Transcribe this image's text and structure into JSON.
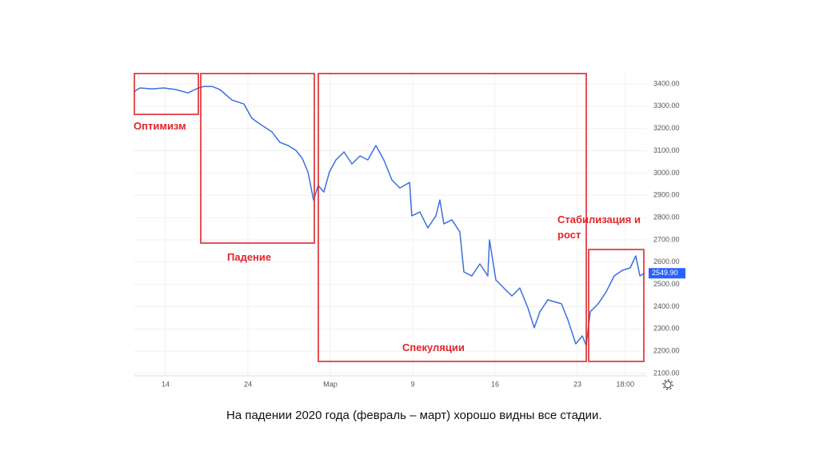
{
  "chart_data": {
    "type": "line",
    "x": [
      -1.94,
      -1.55,
      -0.83,
      -0.1,
      0.63,
      1.36,
      1.99,
      2.33,
      2.82,
      3.3,
      4.03,
      4.76,
      5.24,
      5.73,
      6.46,
      6.94,
      7.43,
      7.91,
      8.3,
      8.64,
      8.98,
      9.27,
      9.61,
      9.95,
      10.34,
      10.83,
      11.31,
      11.8,
      12.28,
      12.77,
      13.25,
      13.74,
      14.22,
      14.81,
      14.95,
      15.44,
      15.92,
      16.41,
      16.65,
      16.89,
      17.38,
      17.86,
      18.11,
      18.59,
      19.08,
      19.56,
      19.66,
      20.05,
      20.53,
      21.02,
      21.5,
      21.99,
      22.38,
      22.72,
      23.2,
      23.69,
      24.03,
      24.42,
      24.9,
      25.29,
      25.53,
      25.78,
      26.26,
      26.75,
      27.23,
      27.72,
      28.2,
      28.54,
      28.79,
      29.08
    ],
    "values": [
      3364,
      3382,
      3378,
      3382,
      3375,
      3360,
      3382,
      3389,
      3389,
      3375,
      3328,
      3310,
      3246,
      3220,
      3185,
      3138,
      3124,
      3102,
      3066,
      3005,
      2879,
      2944,
      2915,
      3005,
      3059,
      3095,
      3041,
      3077,
      3059,
      3124,
      3059,
      2969,
      2933,
      2958,
      2808,
      2825,
      2754,
      2808,
      2879,
      2772,
      2790,
      2736,
      2556,
      2538,
      2592,
      2538,
      2700,
      2520,
      2484,
      2448,
      2484,
      2395,
      2305,
      2377,
      2431,
      2420,
      2413,
      2341,
      2233,
      2269,
      2226,
      2377,
      2413,
      2467,
      2538,
      2563,
      2574,
      2628,
      2538,
      2549.9
    ],
    "color": "#3d6fe0",
    "xlim": [
      -1.94,
      29.2
    ],
    "xticks": [
      {
        "value": 0,
        "label": "14"
      },
      {
        "value": 5,
        "label": "24"
      },
      {
        "value": 10,
        "label": "Мар"
      },
      {
        "value": 15,
        "label": "9"
      },
      {
        "value": 20,
        "label": "16"
      },
      {
        "value": 25,
        "label": "23"
      },
      {
        "value": 27.9,
        "label": "18:00"
      }
    ],
    "ylim": [
      2020,
      3450
    ],
    "yticks": [
      {
        "value": 2100,
        "label": "2100.00"
      },
      {
        "value": 2200,
        "label": "2200.00"
      },
      {
        "value": 2300,
        "label": "2300.00"
      },
      {
        "value": 2400,
        "label": "2400.00"
      },
      {
        "value": 2500,
        "label": "2500.00"
      },
      {
        "value": 2600,
        "label": "2600.00"
      },
      {
        "value": 2700,
        "label": "2700.00"
      },
      {
        "value": 2800,
        "label": "2800.00"
      },
      {
        "value": 2900,
        "label": "2900.00"
      },
      {
        "value": 3000,
        "label": "3000.00"
      },
      {
        "value": 3100,
        "label": "3100.00"
      },
      {
        "value": 3200,
        "label": "3200.00"
      },
      {
        "value": 3300,
        "label": "3300.00"
      },
      {
        "value": 3400,
        "label": "3400.00"
      }
    ],
    "last_price": {
      "value": 2549.9,
      "label": "2549.90"
    },
    "grid": true,
    "annotations": [
      "Оптимизм",
      "Падение",
      "Спекуляции",
      "Стабилизация и рост"
    ]
  },
  "caption": "На падении 2020 года (февраль – март) хорошо видны все стадии."
}
